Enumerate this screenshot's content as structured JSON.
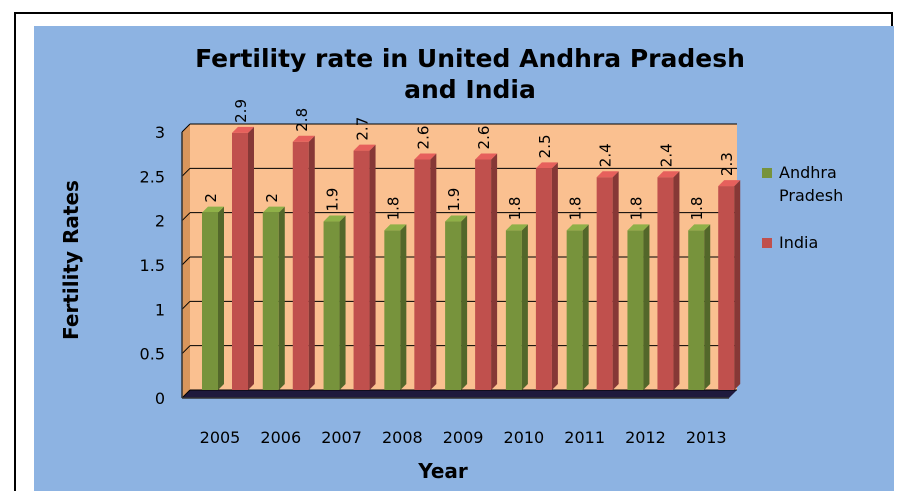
{
  "chart_data": {
    "type": "bar",
    "title_lines": [
      "Fertility rate in United Andhra Pradesh",
      "and India"
    ],
    "xlabel": "Year",
    "ylabel": "Fertility Rates",
    "categories": [
      "2005",
      "2006",
      "2007",
      "2008",
      "2009",
      "2010",
      "2011",
      "2012",
      "2013"
    ],
    "ylim": [
      0,
      3
    ],
    "yticks": [
      "0",
      "0.5",
      "1",
      "1.5",
      "2",
      "2.5",
      "3"
    ],
    "grid": true,
    "legend_position": "right",
    "series": [
      {
        "name": "Andhra Pradesh",
        "name_lines": [
          "Andhra",
          "Pradesh"
        ],
        "color": "#77933c",
        "values": [
          2,
          2,
          1.9,
          1.8,
          1.9,
          1.8,
          1.8,
          1.8,
          1.8
        ],
        "labels": [
          "2",
          "2",
          "1.9",
          "1.8",
          "1.9",
          "1.8",
          "1.8",
          "1.8",
          "1.8"
        ]
      },
      {
        "name": "India",
        "name_lines": [
          "India"
        ],
        "color": "#c0504d",
        "values": [
          2.9,
          2.8,
          2.7,
          2.6,
          2.6,
          2.5,
          2.4,
          2.4,
          2.3
        ],
        "labels": [
          "2.9",
          "2.8",
          "2.7",
          "2.6",
          "2.6",
          "2.5",
          "2.4",
          "2.4",
          "2.3"
        ]
      }
    ],
    "colors": {
      "background": "#8db3e2",
      "plot_wall": "#fac090",
      "floor": "#1f1a3d"
    }
  }
}
